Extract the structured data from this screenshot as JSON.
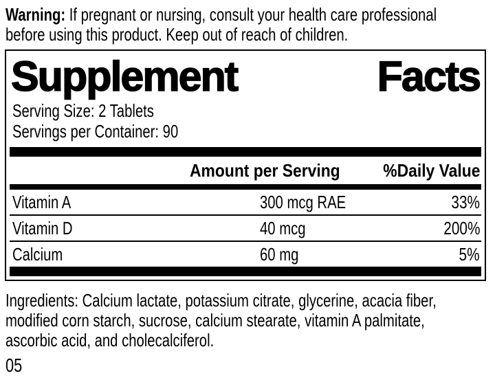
{
  "warning": {
    "label": "Warning:",
    "line1_rest": " If pregnant or nursing, consult your health care professional",
    "line2": "before using this product. Keep out of reach of children."
  },
  "panel": {
    "title": {
      "word1": "Supplement",
      "word2": "Facts"
    },
    "serving_size": "Serving Size: 2 Tablets",
    "servings_per_container": "Servings per Container: 90",
    "header": {
      "amount": "Amount per Serving",
      "daily_value": "%Daily Value"
    },
    "rows": [
      {
        "name": "Vitamin A",
        "amount": "300 mcg RAE",
        "dv": "33%"
      },
      {
        "name": "Vitamin D",
        "amount": "40 mcg",
        "dv": "200%"
      },
      {
        "name": "Calcium",
        "amount": "60 mg",
        "dv": "5%"
      }
    ]
  },
  "ingredients": {
    "line1": "Ingredients: Calcium lactate, potassium citrate, glycerine, acacia fiber,",
    "line2": "modified corn starch, sucrose, calcium stearate, vitamin A palmitate,",
    "line3": "ascorbic acid, and cholecalciferol."
  },
  "footer": {
    "code": "05"
  },
  "colors": {
    "ink": "#000000",
    "paper": "#ffffff"
  }
}
